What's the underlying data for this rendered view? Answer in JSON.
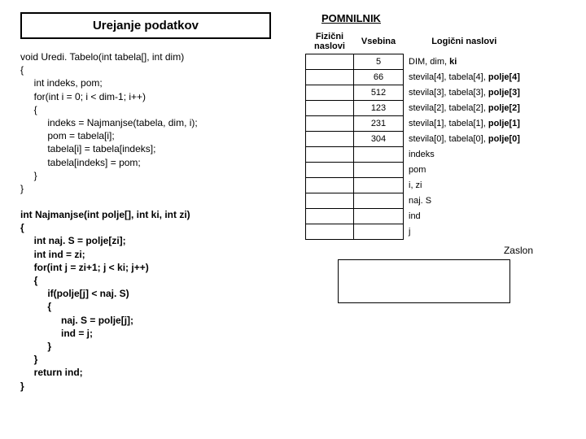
{
  "title": "Urejanje podatkov",
  "memory_title": "POMNILNIK",
  "headers": {
    "fizicni": "Fizični naslovi",
    "vsebina": "Vsebina",
    "logicni": "Logični naslovi"
  },
  "code1": {
    "l1": "void Uredi. Tabelo(int tabela[], int dim)",
    "l2": "{",
    "l3": "     int indeks, pom;",
    "l4": "     for(int i = 0; i < dim-1; i++)",
    "l5": "     {",
    "l6": "          indeks = Najmanjse(tabela, dim, i);",
    "l7": "          pom = tabela[i];",
    "l8": "          tabela[i] = tabela[indeks];",
    "l9": "          tabela[indeks] = pom;",
    "l10": "     }",
    "l11": "}"
  },
  "code2": {
    "l1": "int Najmanjse(int polje[], int ki, int zi)",
    "l2": "{",
    "l3": "     int naj. S = polje[zi];",
    "l4": "     int ind = zi;",
    "l5": "     for(int j = zi+1; j < ki; j++)",
    "l6": "     {",
    "l7": "          if(polje[j] < naj. S)",
    "l8": "          {",
    "l9": "               naj. S = polje[j];",
    "l10": "               ind = j;",
    "l11": "          }",
    "l12": "     }",
    "l13": "     return ind;",
    "l14": "}"
  },
  "mem_rows": [
    {
      "val": "5",
      "log_a": "DIM, dim, ",
      "log_b": "ki"
    },
    {
      "val": "66",
      "log_a": "stevila[4], tabela[4], ",
      "log_b": "polje[4]"
    },
    {
      "val": "512",
      "log_a": "stevila[3], tabela[3], ",
      "log_b": "polje[3]"
    },
    {
      "val": "123",
      "log_a": "stevila[2], tabela[2], ",
      "log_b": "polje[2]"
    },
    {
      "val": "231",
      "log_a": "stevila[1], tabela[1], ",
      "log_b": "polje[1]"
    },
    {
      "val": "304",
      "log_a": "stevila[0], tabela[0], ",
      "log_b": "polje[0]"
    }
  ],
  "extra_rows": [
    "indeks",
    "pom",
    "i, zi",
    "naj. S",
    "ind",
    "j"
  ],
  "zaslon": "Zaslon"
}
